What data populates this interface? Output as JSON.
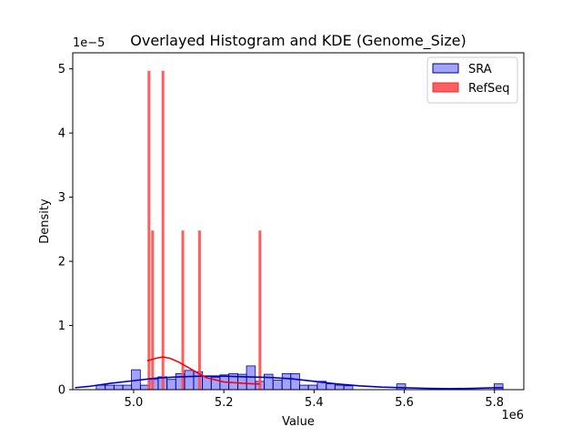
{
  "chart_data": {
    "type": "bar",
    "title": "Overlayed Histogram and KDE (Genome_Size)",
    "xlabel": "Value",
    "ylabel": "Density",
    "x_offset_label": "1e6",
    "y_offset_label": "1e−5",
    "xlim": [
      4.865,
      5.865
    ],
    "ylim": [
      0,
      5.25
    ],
    "x_ticks": [
      5.0,
      5.2,
      5.4,
      5.6,
      5.8
    ],
    "x_tick_labels": [
      "5.0",
      "5.2",
      "5.4",
      "5.6",
      "5.8"
    ],
    "y_ticks": [
      0,
      1,
      2,
      3,
      4,
      5
    ],
    "y_tick_labels": [
      "0",
      "1",
      "2",
      "3",
      "4",
      "5"
    ],
    "grid": false,
    "legend_position": "top-right",
    "series": [
      {
        "name": "SRA",
        "kind": "histogram",
        "color": "#6464ff",
        "edge_color": "#00007a",
        "bin_width": 0.0196,
        "bars": [
          [
            4.927,
            0.07
          ],
          [
            4.947,
            0.07
          ],
          [
            4.966,
            0.07
          ],
          [
            4.986,
            0.07
          ],
          [
            5.005,
            0.31
          ],
          [
            5.025,
            0.07
          ],
          [
            5.045,
            0.16
          ],
          [
            5.064,
            0.2
          ],
          [
            5.084,
            0.16
          ],
          [
            5.103,
            0.25
          ],
          [
            5.123,
            0.3
          ],
          [
            5.143,
            0.28
          ],
          [
            5.162,
            0.21
          ],
          [
            5.182,
            0.19
          ],
          [
            5.201,
            0.23
          ],
          [
            5.221,
            0.25
          ],
          [
            5.241,
            0.24
          ],
          [
            5.26,
            0.37
          ],
          [
            5.28,
            0.13
          ],
          [
            5.299,
            0.24
          ],
          [
            5.319,
            0.15
          ],
          [
            5.339,
            0.25
          ],
          [
            5.358,
            0.25
          ],
          [
            5.378,
            0.07
          ],
          [
            5.397,
            0.07
          ],
          [
            5.417,
            0.13
          ],
          [
            5.437,
            0.09
          ],
          [
            5.456,
            0.07
          ],
          [
            5.476,
            0.06
          ],
          [
            5.593,
            0.09
          ],
          [
            5.809,
            0.09
          ]
        ],
        "kde": [
          [
            4.87,
            0.03
          ],
          [
            4.9,
            0.05
          ],
          [
            4.95,
            0.1
          ],
          [
            5.0,
            0.14
          ],
          [
            5.05,
            0.18
          ],
          [
            5.1,
            0.2
          ],
          [
            5.15,
            0.21
          ],
          [
            5.2,
            0.21
          ],
          [
            5.25,
            0.2
          ],
          [
            5.3,
            0.19
          ],
          [
            5.35,
            0.17
          ],
          [
            5.4,
            0.13
          ],
          [
            5.45,
            0.09
          ],
          [
            5.5,
            0.06
          ],
          [
            5.55,
            0.04
          ],
          [
            5.6,
            0.03
          ],
          [
            5.65,
            0.02
          ],
          [
            5.7,
            0.015
          ],
          [
            5.75,
            0.02
          ],
          [
            5.8,
            0.03
          ],
          [
            5.82,
            0.03
          ]
        ]
      },
      {
        "name": "RefSeq",
        "kind": "histogram",
        "color": "#ff4d4d",
        "edge_color": "#e03030",
        "bars": [
          [
            5.034,
            4.97
          ],
          [
            5.042,
            2.48
          ],
          [
            5.065,
            4.97
          ],
          [
            5.109,
            2.48
          ],
          [
            5.146,
            2.48
          ],
          [
            5.28,
            2.48
          ]
        ],
        "kde": [
          [
            5.03,
            0.45
          ],
          [
            5.05,
            0.49
          ],
          [
            5.065,
            0.51
          ],
          [
            5.08,
            0.49
          ],
          [
            5.1,
            0.43
          ],
          [
            5.13,
            0.31
          ],
          [
            5.16,
            0.19
          ],
          [
            5.2,
            0.12
          ],
          [
            5.24,
            0.1
          ],
          [
            5.27,
            0.09
          ],
          [
            5.28,
            0.09
          ]
        ]
      }
    ]
  }
}
